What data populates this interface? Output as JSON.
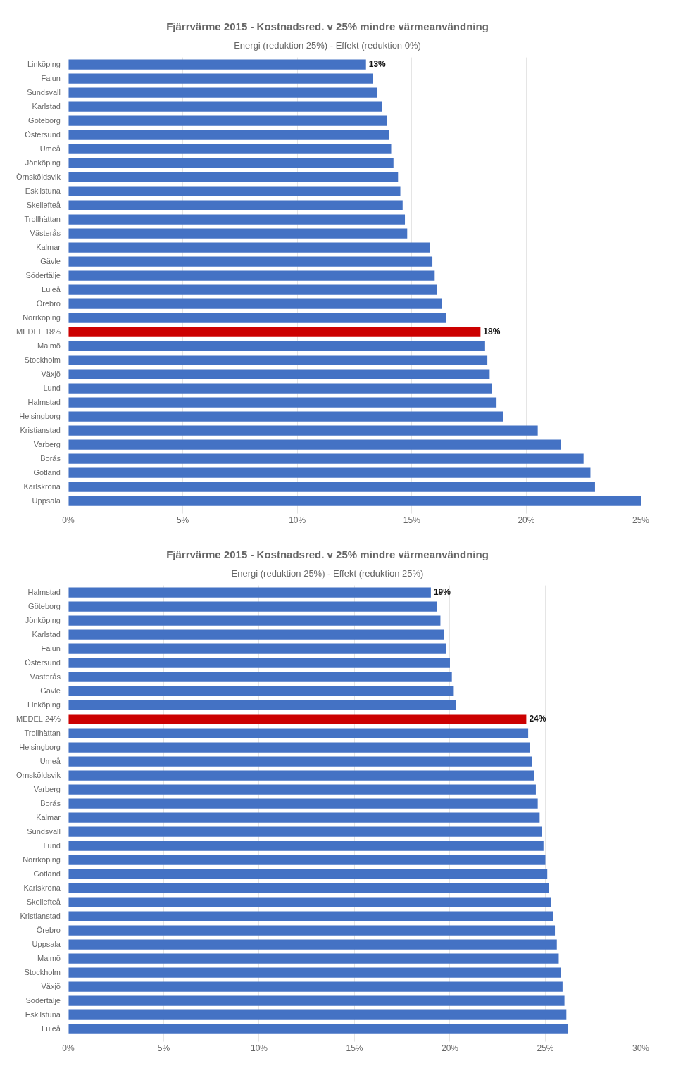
{
  "chart_data": [
    {
      "type": "bar",
      "orientation": "horizontal",
      "title": "Fjärrvärme 2015 - Kostnadsred. v 25% mindre värmeanvändning",
      "subtitle": "Energi (reduktion 25%) - Effekt (reduktion 0%)",
      "categories": [
        "Linköping",
        "Falun",
        "Sundsvall",
        "Karlstad",
        "Göteborg",
        "Östersund",
        "Umeå",
        "Jönköping",
        "Örnsköldsvik",
        "Eskilstuna",
        "Skellefteå",
        "Trollhättan",
        "Västerås",
        "Kalmar",
        "Gävle",
        "Södertälje",
        "Luleå",
        "Örebro",
        "Norrköping",
        "MEDEL 18%",
        "Malmö",
        "Stockholm",
        "Växjö",
        "Lund",
        "Halmstad",
        "Helsingborg",
        "Kristianstad",
        "Varberg",
        "Borås",
        "Gotland",
        "Karlskrona",
        "Uppsala"
      ],
      "values": [
        0.13,
        0.133,
        0.135,
        0.137,
        0.139,
        0.14,
        0.141,
        0.142,
        0.144,
        0.145,
        0.146,
        0.147,
        0.148,
        0.158,
        0.159,
        0.16,
        0.161,
        0.163,
        0.165,
        0.18,
        0.182,
        0.183,
        0.184,
        0.185,
        0.187,
        0.19,
        0.205,
        0.215,
        0.225,
        0.228,
        0.23,
        0.25
      ],
      "colors": [
        "#4472C4",
        "#4472C4",
        "#4472C4",
        "#4472C4",
        "#4472C4",
        "#4472C4",
        "#4472C4",
        "#4472C4",
        "#4472C4",
        "#4472C4",
        "#4472C4",
        "#4472C4",
        "#4472C4",
        "#4472C4",
        "#4472C4",
        "#4472C4",
        "#4472C4",
        "#4472C4",
        "#4472C4",
        "#CC0000",
        "#4472C4",
        "#4472C4",
        "#4472C4",
        "#4472C4",
        "#4472C4",
        "#4472C4",
        "#4472C4",
        "#4472C4",
        "#4472C4",
        "#4472C4",
        "#4472C4",
        "#4472C4"
      ],
      "annotations": [
        {
          "category": "Linköping",
          "text": "13%"
        },
        {
          "category": "MEDEL 18%",
          "text": "18%"
        }
      ],
      "xlim": [
        0.0,
        0.25
      ],
      "xticks": [
        {
          "value": 0.0,
          "label": "0%"
        },
        {
          "value": 0.05,
          "label": "5%"
        },
        {
          "value": 0.1,
          "label": "10%"
        },
        {
          "value": 0.15,
          "label": "15%"
        },
        {
          "value": 0.2,
          "label": "20%"
        },
        {
          "value": 0.25,
          "label": "25%"
        }
      ],
      "grid": true
    },
    {
      "type": "bar",
      "orientation": "horizontal",
      "title": "Fjärrvärme 2015 - Kostnadsred. v 25% mindre värmeanvändning",
      "subtitle": "Energi (reduktion 25%) - Effekt (reduktion 25%)",
      "categories": [
        "Halmstad",
        "Göteborg",
        "Jönköping",
        "Karlstad",
        "Falun",
        "Östersund",
        "Västerås",
        "Gävle",
        "Linköping",
        "MEDEL 24%",
        "Trollhättan",
        "Helsingborg",
        "Umeå",
        "Örnsköldsvik",
        "Varberg",
        "Borås",
        "Kalmar",
        "Sundsvall",
        "Lund",
        "Norrköping",
        "Gotland",
        "Karlskrona",
        "Skellefteå",
        "Kristianstad",
        "Örebro",
        "Uppsala",
        "Malmö",
        "Stockholm",
        "Växjö",
        "Södertälje",
        "Eskilstuna",
        "Luleå"
      ],
      "values": [
        0.19,
        0.193,
        0.195,
        0.197,
        0.198,
        0.2,
        0.201,
        0.202,
        0.203,
        0.24,
        0.241,
        0.242,
        0.243,
        0.244,
        0.245,
        0.246,
        0.247,
        0.248,
        0.249,
        0.25,
        0.251,
        0.252,
        0.253,
        0.254,
        0.255,
        0.256,
        0.257,
        0.258,
        0.259,
        0.26,
        0.261,
        0.262
      ],
      "colors": [
        "#4472C4",
        "#4472C4",
        "#4472C4",
        "#4472C4",
        "#4472C4",
        "#4472C4",
        "#4472C4",
        "#4472C4",
        "#4472C4",
        "#CC0000",
        "#4472C4",
        "#4472C4",
        "#4472C4",
        "#4472C4",
        "#4472C4",
        "#4472C4",
        "#4472C4",
        "#4472C4",
        "#4472C4",
        "#4472C4",
        "#4472C4",
        "#4472C4",
        "#4472C4",
        "#4472C4",
        "#4472C4",
        "#4472C4",
        "#4472C4",
        "#4472C4",
        "#4472C4",
        "#4472C4",
        "#4472C4",
        "#4472C4"
      ],
      "annotations": [
        {
          "category": "Halmstad",
          "text": "19%"
        },
        {
          "category": "MEDEL 24%",
          "text": "24%"
        }
      ],
      "xlim": [
        0.0,
        0.3
      ],
      "xticks": [
        {
          "value": 0.0,
          "label": "0%"
        },
        {
          "value": 0.05,
          "label": "5%"
        },
        {
          "value": 0.1,
          "label": "10%"
        },
        {
          "value": 0.15,
          "label": "15%"
        },
        {
          "value": 0.2,
          "label": "20%"
        },
        {
          "value": 0.25,
          "label": "25%"
        },
        {
          "value": 0.3,
          "label": "30%"
        }
      ],
      "grid": true
    }
  ]
}
